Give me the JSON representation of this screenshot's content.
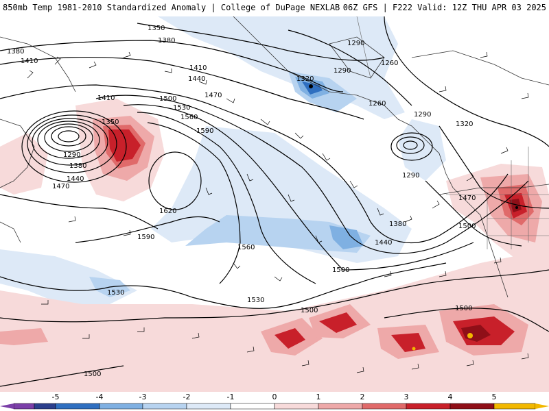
{
  "header": {
    "title_left": "850mb Temp 1981-2010 Standardized Anomaly | College of DuPage NEXLAB",
    "title_right": "06Z GFS | F222 Valid: 12Z THU APR 03 2025"
  },
  "map": {
    "contour_labels": [
      {
        "text": "1350"
      },
      {
        "text": "1380"
      },
      {
        "text": "1380"
      },
      {
        "text": "1410"
      },
      {
        "text": "1410"
      },
      {
        "text": "1440"
      },
      {
        "text": "1470"
      },
      {
        "text": "1410"
      },
      {
        "text": "1350"
      },
      {
        "text": "1500"
      },
      {
        "text": "1530"
      },
      {
        "text": "1560"
      },
      {
        "text": "1590"
      },
      {
        "text": "1290"
      },
      {
        "text": "1380"
      },
      {
        "text": "1440"
      },
      {
        "text": "1470"
      },
      {
        "text": "1620"
      },
      {
        "text": "1590"
      },
      {
        "text": "1560"
      },
      {
        "text": "1530"
      },
      {
        "text": "1530"
      },
      {
        "text": "1500"
      },
      {
        "text": "1500"
      },
      {
        "text": "1500"
      },
      {
        "text": "1500"
      },
      {
        "text": "1290"
      },
      {
        "text": "1290"
      },
      {
        "text": "1320"
      },
      {
        "text": "1260"
      },
      {
        "text": "1260"
      },
      {
        "text": "1290"
      },
      {
        "text": "1320"
      },
      {
        "text": "1290"
      },
      {
        "text": "1380"
      },
      {
        "text": "1440"
      },
      {
        "text": "1470"
      },
      {
        "text": "1500"
      },
      {
        "text": "1500"
      }
    ]
  },
  "colorbar": {
    "ticks": [
      "-5",
      "-4",
      "-3",
      "-2",
      "-1",
      "0",
      "1",
      "2",
      "3",
      "4",
      "5"
    ],
    "colors": [
      "#7b3fa8",
      "#2b3f8c",
      "#2f6fc0",
      "#7fb0e2",
      "#b7d3f0",
      "#dde9f7",
      "#ffffff",
      "#f7dada",
      "#eea9a9",
      "#e06a6a",
      "#c8202a",
      "#8f0f18",
      "#f2b800"
    ]
  },
  "colors": {
    "positive_light": "#f7dada",
    "positive_mid": "#eea9a9",
    "positive_strong": "#e06a6a",
    "positive_very_strong": "#c8202a",
    "positive_extreme": "#8f0f18",
    "positive_max": "#f2b800",
    "negative_light": "#dde9f7",
    "negative_mid": "#b7d3f0",
    "negative_strong": "#7fb0e2",
    "negative_very_strong": "#2f6fc0"
  }
}
